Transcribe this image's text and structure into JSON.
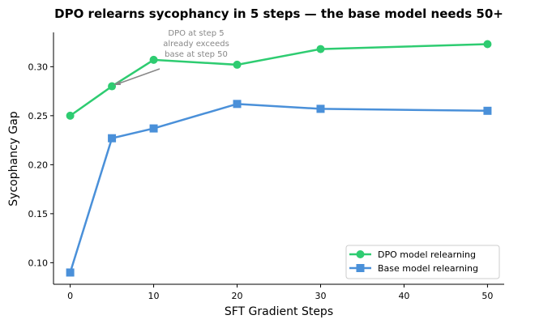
{
  "chart_data": {
    "type": "line",
    "title": "DPO relearns sycophancy in 5 steps — the base model needs 50+",
    "xlabel": "SFT Gradient Steps",
    "ylabel": "Sycophancy Gap",
    "xlim": [
      -2,
      52
    ],
    "ylim": [
      0.078,
      0.335
    ],
    "xticks": [
      0,
      10,
      20,
      30,
      40,
      50
    ],
    "yticks": [
      0.1,
      0.15,
      0.2,
      0.25,
      0.3
    ],
    "ytick_labels": [
      "0.10",
      "0.15",
      "0.20",
      "0.25",
      "0.30"
    ],
    "grid": false,
    "legend_position": "lower-right",
    "x": [
      0,
      5,
      10,
      20,
      30,
      50
    ],
    "series": [
      {
        "name": "DPO model relearning",
        "color": "#2ecc71",
        "marker": "circle",
        "values": [
          0.25,
          0.28,
          0.307,
          0.302,
          0.318,
          0.323
        ]
      },
      {
        "name": "Base model relearning",
        "color": "#4a90d9",
        "marker": "square",
        "values": [
          0.09,
          0.227,
          0.237,
          0.262,
          0.257,
          0.255
        ]
      }
    ],
    "annotation": {
      "lines": [
        "DPO at step 5",
        "already exceeds",
        "base at step 50"
      ],
      "points_to": {
        "x": 5,
        "y": 0.28
      }
    }
  }
}
